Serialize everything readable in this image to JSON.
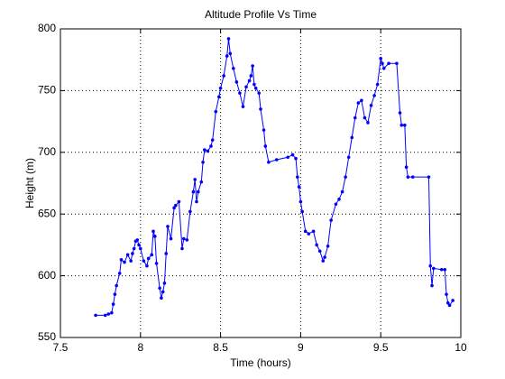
{
  "chart_data": {
    "type": "line",
    "title": "Altitude Profile Vs Time",
    "xlabel": "Time (hours)",
    "ylabel": "Height (m)",
    "color": "#0000ff",
    "grid": true,
    "xlim": [
      7.5,
      10
    ],
    "xticks": [
      7.5,
      8,
      8.5,
      9,
      9.5,
      10
    ],
    "ylim": [
      550,
      800
    ],
    "yticks": [
      550,
      600,
      650,
      700,
      750,
      800
    ],
    "x": [
      7.72,
      7.78,
      7.8,
      7.82,
      7.83,
      7.84,
      7.85,
      7.87,
      7.88,
      7.9,
      7.92,
      7.94,
      7.95,
      7.96,
      7.97,
      7.98,
      7.99,
      8.0,
      8.02,
      8.04,
      8.05,
      8.07,
      8.08,
      8.09,
      8.1,
      8.12,
      8.13,
      8.14,
      8.15,
      8.16,
      8.17,
      8.19,
      8.21,
      8.22,
      8.24,
      8.26,
      8.27,
      8.29,
      8.31,
      8.33,
      8.34,
      8.35,
      8.36,
      8.38,
      8.39,
      8.4,
      8.42,
      8.44,
      8.45,
      8.47,
      8.49,
      8.5,
      8.52,
      8.54,
      8.55,
      8.56,
      8.58,
      8.6,
      8.62,
      8.64,
      8.66,
      8.68,
      8.69,
      8.7,
      8.71,
      8.72,
      8.74,
      8.75,
      8.77,
      8.78,
      8.8,
      8.85,
      8.92,
      8.95,
      8.97,
      8.98,
      8.99,
      9.0,
      9.01,
      9.03,
      9.05,
      9.08,
      9.1,
      9.12,
      9.14,
      9.15,
      9.17,
      9.19,
      9.22,
      9.24,
      9.26,
      9.28,
      9.3,
      9.32,
      9.34,
      9.36,
      9.38,
      9.4,
      9.42,
      9.44,
      9.46,
      9.48,
      9.5,
      9.51,
      9.52,
      9.55,
      9.6,
      9.62,
      9.63,
      9.65,
      9.66,
      9.67,
      9.7,
      9.8,
      9.81,
      9.82,
      9.83,
      9.88,
      9.9,
      9.91,
      9.92,
      9.93,
      9.95
    ],
    "values": [
      568,
      568,
      569,
      570,
      577,
      585,
      592,
      602,
      613,
      611,
      617,
      612,
      618,
      622,
      628,
      629,
      625,
      622,
      612,
      608,
      614,
      617,
      636,
      632,
      610,
      590,
      582,
      587,
      594,
      618,
      640,
      630,
      655,
      657,
      660,
      622,
      630,
      629,
      652,
      668,
      678,
      660,
      668,
      676,
      692,
      702,
      701,
      705,
      710,
      733,
      745,
      752,
      762,
      778,
      792,
      780,
      768,
      757,
      748,
      737,
      753,
      758,
      762,
      770,
      755,
      752,
      748,
      735,
      718,
      705,
      692,
      694,
      696,
      698,
      695,
      680,
      672,
      660,
      652,
      636,
      634,
      636,
      625,
      620,
      612,
      615,
      624,
      645,
      658,
      662,
      668,
      680,
      696,
      712,
      728,
      740,
      742,
      728,
      724,
      738,
      746,
      755,
      776,
      772,
      768,
      772,
      772,
      732,
      722,
      722,
      688,
      680,
      680,
      680,
      608,
      592,
      606,
      605,
      605,
      585,
      578,
      576,
      580
    ]
  }
}
